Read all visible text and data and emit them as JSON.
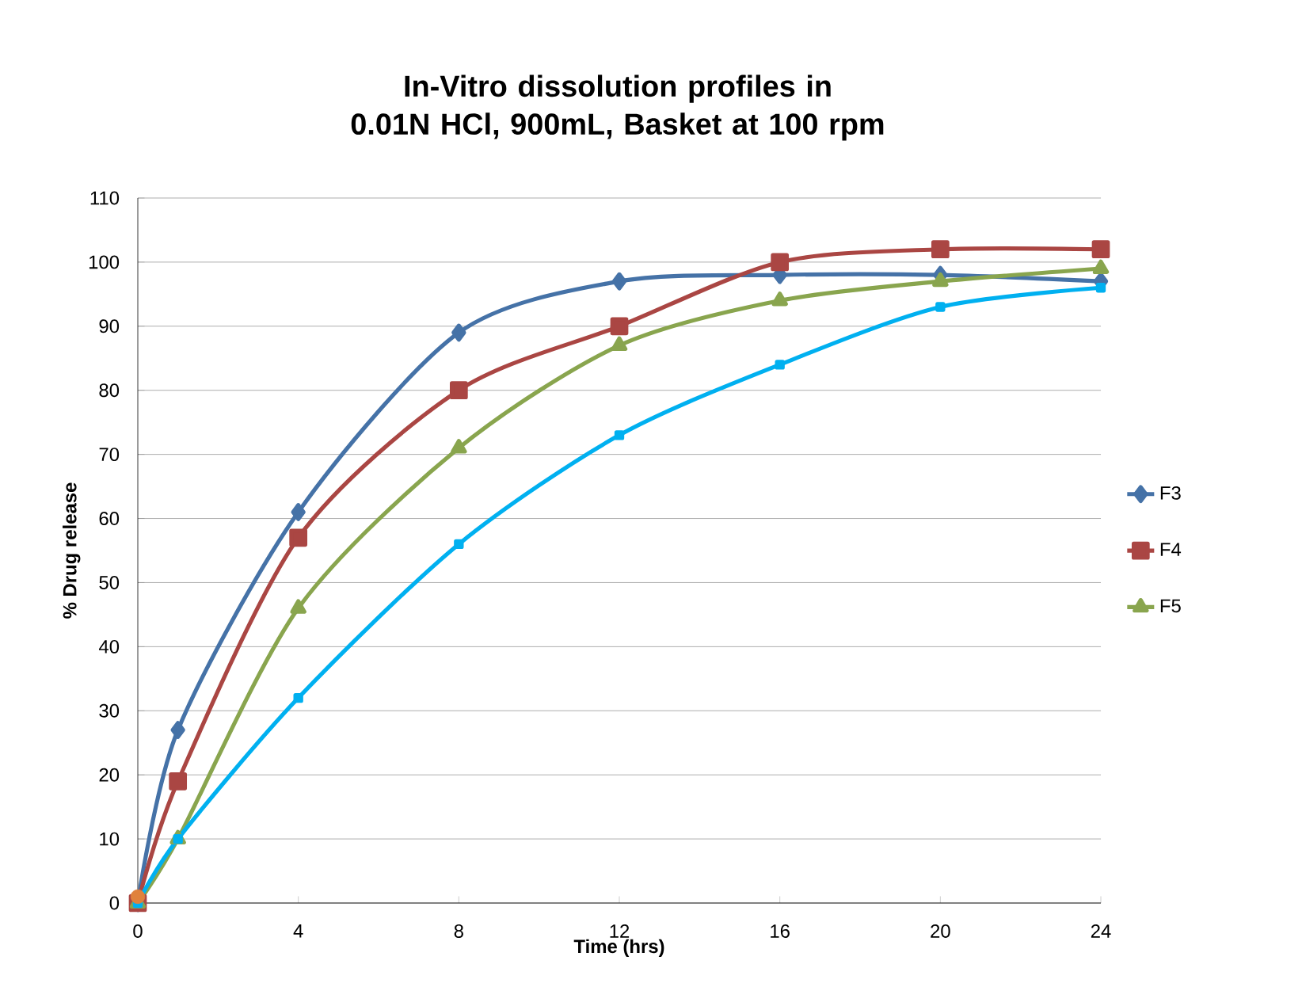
{
  "chart_data": {
    "type": "line",
    "title": "In-Vitro dissolution profiles in\n0.01N HCl, 900mL, Basket at 100 rpm",
    "xlabel": "Time (hrs)",
    "ylabel": "% Drug release",
    "x": [
      0,
      1,
      4,
      8,
      12,
      16,
      20,
      24
    ],
    "series": [
      {
        "name": "F3",
        "color": "#4572a7",
        "marker": "diamond",
        "values": [
          0,
          27,
          61,
          89,
          97,
          98,
          98,
          97
        ]
      },
      {
        "name": "F4",
        "color": "#aa4643",
        "marker": "square",
        "values": [
          0,
          19,
          57,
          80,
          90,
          100,
          102,
          102
        ]
      },
      {
        "name": "F5",
        "color": "#89a54e",
        "marker": "triangle",
        "values": [
          0,
          10,
          46,
          71,
          87,
          94,
          97,
          99
        ]
      },
      {
        "color": "#00b0f0",
        "marker": "square",
        "values": [
          0,
          10,
          32,
          56,
          73,
          84,
          93,
          96
        ]
      },
      {
        "type": "scatter",
        "color": "#e0823c",
        "marker": "circle",
        "x": [
          0
        ],
        "values": [
          1
        ]
      }
    ],
    "xlim": [
      0,
      24
    ],
    "xticks": [
      0,
      4,
      8,
      12,
      16,
      20,
      24
    ],
    "ylim": [
      0,
      110
    ],
    "yticks": [
      0,
      10,
      20,
      30,
      40,
      50,
      60,
      70,
      80,
      90,
      100,
      110
    ],
    "grid": "y",
    "legend": "right"
  }
}
